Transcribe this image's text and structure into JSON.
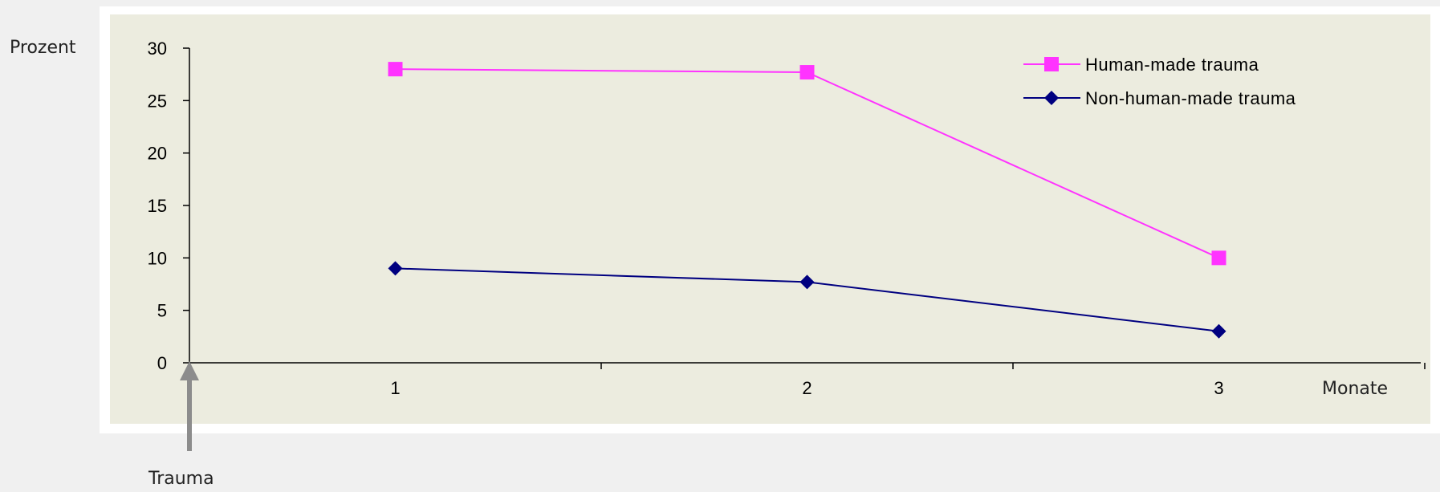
{
  "chart_data": {
    "type": "line",
    "title": "",
    "ylabel": "Prozent",
    "xlabel": "Monate",
    "event_label": "Trauma",
    "categories": [
      "1",
      "2",
      "3"
    ],
    "ylim": [
      0,
      30
    ],
    "yticks": [
      "0",
      "5",
      "10",
      "15",
      "20",
      "25",
      "30"
    ],
    "grid": false,
    "legend_position": "top-right",
    "series": [
      {
        "name": "Human-made trauma",
        "values": [
          28,
          27.7,
          10
        ],
        "color": "#ff33ff",
        "marker": "square"
      },
      {
        "name": "Non-human-made trauma",
        "values": [
          9,
          7.7,
          3
        ],
        "color": "#000080",
        "marker": "diamond"
      }
    ],
    "plot_background": "#ececdf",
    "arrow_color": "#8c8c8c"
  }
}
